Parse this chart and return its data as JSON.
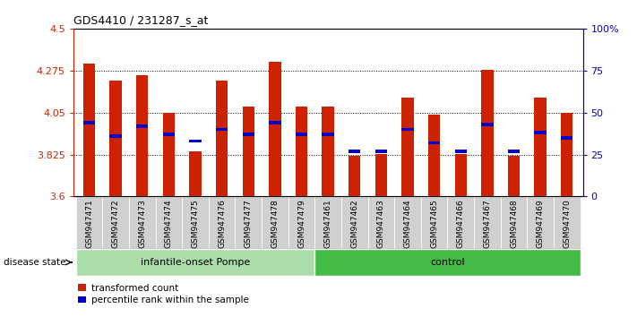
{
  "title": "GDS4410 / 231287_s_at",
  "samples": [
    "GSM947471",
    "GSM947472",
    "GSM947473",
    "GSM947474",
    "GSM947475",
    "GSM947476",
    "GSM947477",
    "GSM947478",
    "GSM947479",
    "GSM947461",
    "GSM947462",
    "GSM947463",
    "GSM947464",
    "GSM947465",
    "GSM947466",
    "GSM947467",
    "GSM947468",
    "GSM947469",
    "GSM947470"
  ],
  "transformed_count": [
    4.31,
    4.22,
    4.25,
    4.05,
    3.84,
    4.22,
    4.08,
    4.32,
    4.08,
    4.08,
    3.82,
    3.83,
    4.13,
    4.04,
    3.83,
    4.28,
    3.82,
    4.13,
    4.05
  ],
  "percentile_rank": [
    44,
    36,
    42,
    37,
    33,
    40,
    37,
    44,
    37,
    37,
    27,
    27,
    40,
    32,
    27,
    43,
    27,
    38,
    35
  ],
  "groups": [
    {
      "label": "infantile-onset Pompe",
      "start": 0,
      "end": 9,
      "color": "#AADDAA"
    },
    {
      "label": "control",
      "start": 9,
      "end": 19,
      "color": "#44BB44"
    }
  ],
  "ymin": 3.6,
  "ymax": 4.5,
  "yticks": [
    3.6,
    3.825,
    4.05,
    4.275,
    4.5
  ],
  "ytick_labels": [
    "3.6",
    "3.825",
    "4.05",
    "4.275",
    "4.5"
  ],
  "right_yticks": [
    0,
    25,
    50,
    75,
    100
  ],
  "right_ytick_labels": [
    "0",
    "25",
    "50",
    "75",
    "100%"
  ],
  "bar_color": "#CC2200",
  "percentile_color": "#0000CC",
  "bar_width": 0.45,
  "disease_state_label": "disease state"
}
